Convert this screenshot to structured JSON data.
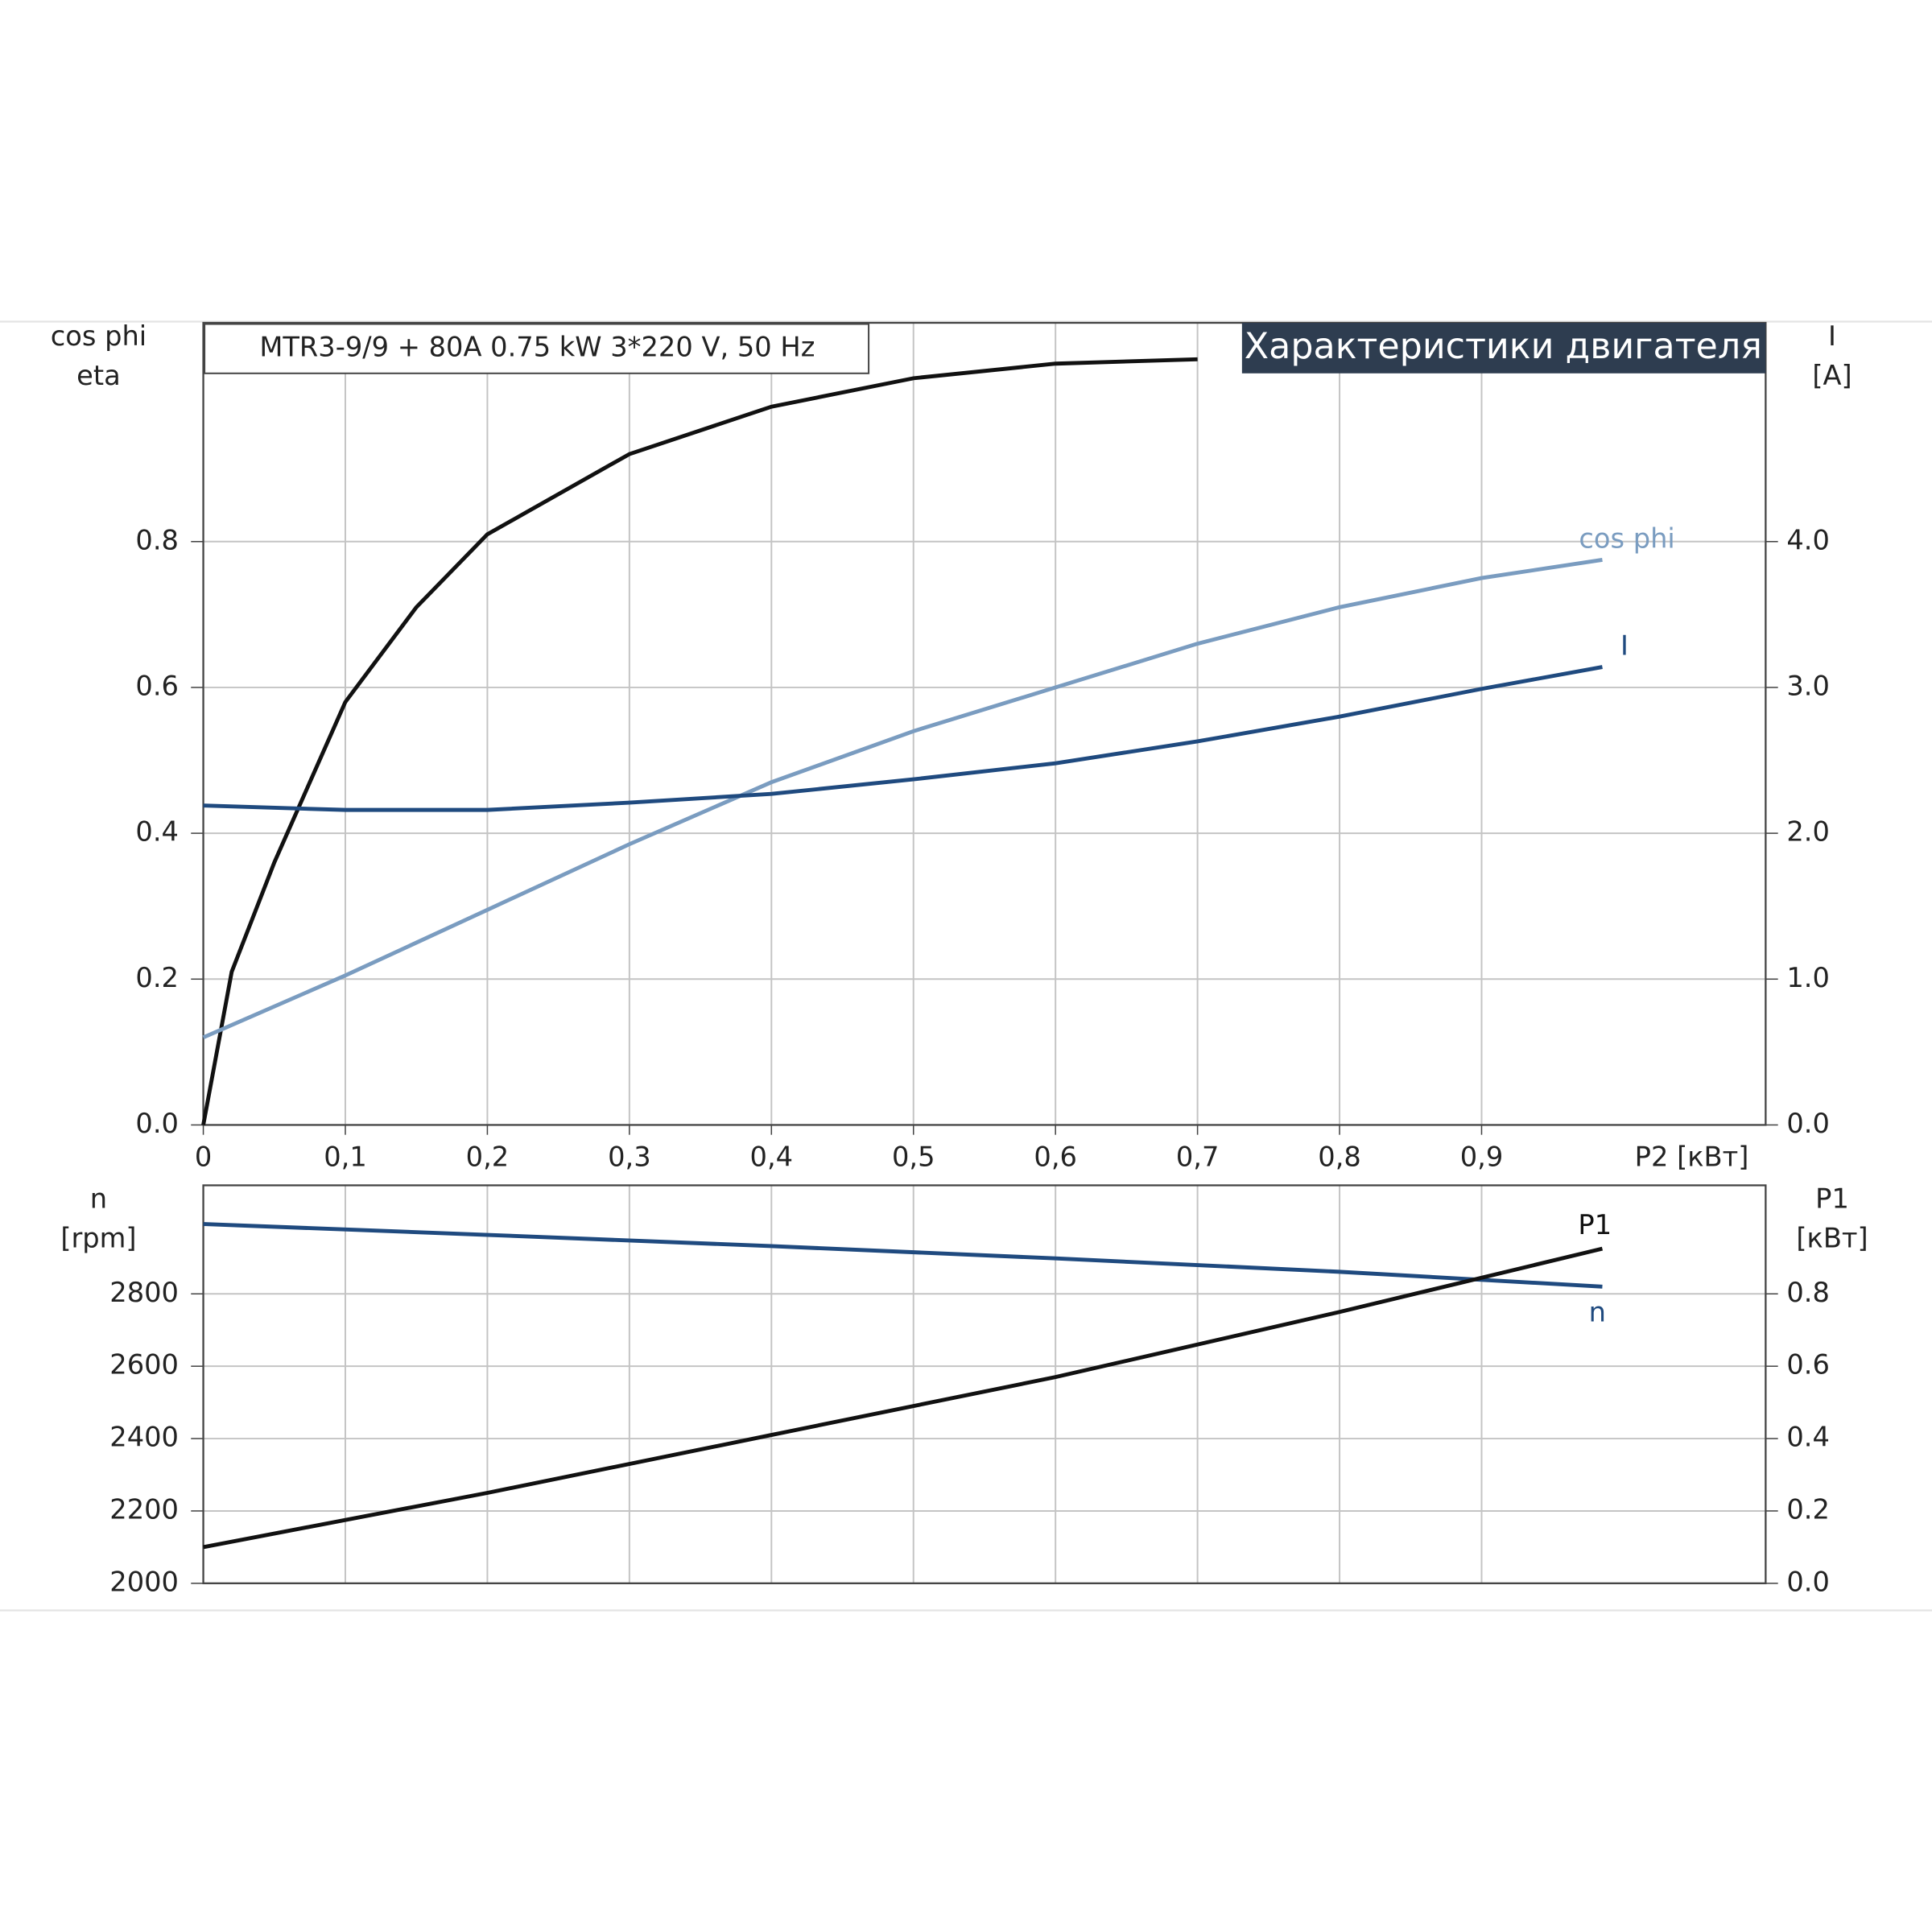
{
  "chart_data": [
    {
      "type": "line",
      "title": "MTR3-9/9 + 80A   0.75 kW   3*220 V, 50 Hz",
      "subtitle": "Характеристики двигателя",
      "xlabel": "P2 [кВт]",
      "ylabel": [
        "cos phi",
        "eta"
      ],
      "y2label": [
        "I",
        "[A]"
      ],
      "xlim": [
        0,
        1.1
      ],
      "xticks": [
        0,
        {
          "value": 0.1,
          "label": "0,1"
        },
        {
          "value": 0.2,
          "label": "0,2"
        },
        {
          "value": 0.3,
          "label": "0,3"
        },
        {
          "value": 0.4,
          "label": "0,4"
        },
        {
          "value": 0.5,
          "label": "0,5"
        },
        {
          "value": 0.6,
          "label": "0,6"
        },
        {
          "value": 0.7,
          "label": "0,7"
        },
        {
          "value": 0.8,
          "label": "0,8"
        },
        {
          "value": 0.9,
          "label": "0,9"
        }
      ],
      "ylim": [
        0,
        1.1
      ],
      "yticks": [
        {
          "value": 0,
          "label": "0.0"
        },
        0.2,
        0.4,
        0.6,
        0.8
      ],
      "y2lim": [
        0,
        5.5
      ],
      "y2ticks": [
        {
          "value": 0,
          "label": "0.0"
        },
        {
          "value": 1,
          "label": "1.0"
        },
        {
          "value": 2,
          "label": "2.0"
        },
        {
          "value": 3,
          "label": "3.0"
        },
        {
          "value": 4,
          "label": "4.0"
        }
      ],
      "grid": true,
      "series": [
        {
          "color": "#111111",
          "x": [
            0,
            0.02,
            0.05,
            0.1,
            0.15,
            0.2,
            0.3,
            0.4,
            0.5,
            0.6,
            0.7
          ],
          "values": [
            0,
            0.21,
            0.36,
            0.58,
            0.71,
            0.81,
            0.92,
            0.985,
            1.024,
            1.044,
            1.05
          ]
        },
        {
          "name": "cos phi",
          "color": "#7a9cc0",
          "x": [
            0,
            0.1,
            0.2,
            0.3,
            0.4,
            0.5,
            0.6,
            0.7,
            0.8,
            0.9,
            0.985
          ],
          "values": [
            0.12,
            0.205,
            0.295,
            0.385,
            0.47,
            0.54,
            0.6,
            0.66,
            0.71,
            0.75,
            0.775
          ]
        },
        {
          "name": "I",
          "color": "#1f4a7f",
          "axis": "y2",
          "x": [
            0,
            0.1,
            0.2,
            0.3,
            0.4,
            0.5,
            0.6,
            0.7,
            0.8,
            0.9,
            0.985
          ],
          "values": [
            2.19,
            2.16,
            2.16,
            2.21,
            2.27,
            2.37,
            2.48,
            2.63,
            2.8,
            2.99,
            3.14
          ]
        }
      ]
    },
    {
      "type": "line",
      "ylabel": [
        "n",
        "[rpm]"
      ],
      "y2label": [
        "P1",
        "[кВт]"
      ],
      "xlim": [
        0,
        1.1
      ],
      "ylim": [
        2000,
        3100
      ],
      "yticks": [
        2000,
        2200,
        2400,
        2600,
        2800
      ],
      "y2lim": [
        0,
        1.1
      ],
      "y2ticks": [
        {
          "value": 0,
          "label": "0.0"
        },
        0.2,
        0.4,
        0.6,
        0.8
      ],
      "grid": true,
      "series": [
        {
          "name": "n",
          "color": "#1f4a7f",
          "x": [
            0,
            0.2,
            0.4,
            0.6,
            0.8,
            0.985
          ],
          "values": [
            2993,
            2963,
            2932,
            2898,
            2861,
            2820
          ]
        },
        {
          "name": "P1",
          "color": "#111111",
          "axis": "y2",
          "x": [
            0,
            0.2,
            0.4,
            0.6,
            0.8,
            0.985
          ],
          "values": [
            0.1,
            0.25,
            0.41,
            0.57,
            0.75,
            0.925
          ]
        }
      ]
    }
  ]
}
